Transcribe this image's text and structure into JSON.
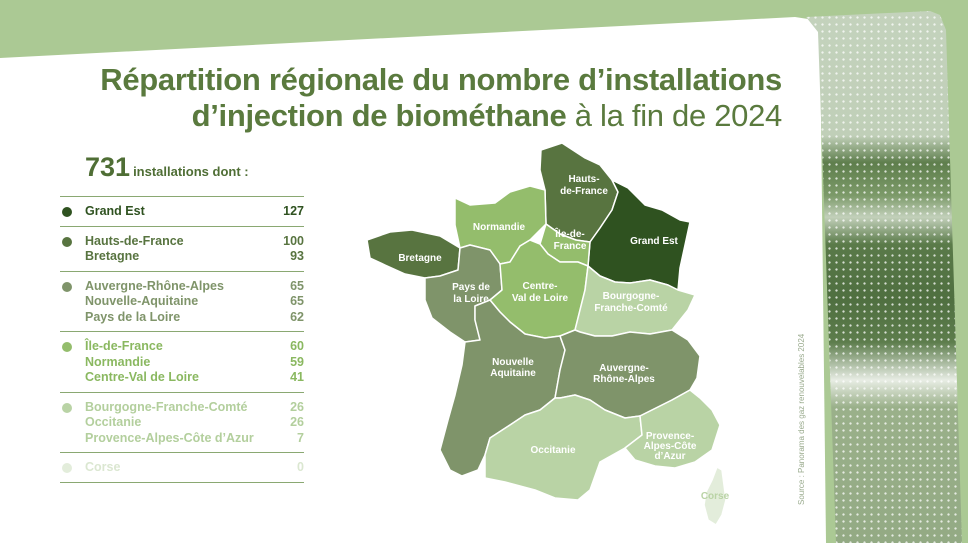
{
  "title": {
    "bold": "Répartition régionale du nombre d’installations",
    "bold2": "d’injection de biométhane",
    "light": " à la fin de 2024"
  },
  "total": {
    "value": "731",
    "label": "installations dont :"
  },
  "colors": {
    "tier1": "#2f5220",
    "tier2": "#587440",
    "tier3": "#7f946a",
    "tier4": "#94bd6c",
    "tier5": "#b9d3a5",
    "tier6": "#e3eddb",
    "text_dark": "#4f6e35",
    "background": "#abc994"
  },
  "legend": {
    "groups": [
      {
        "color": "#2f5220",
        "text_color": "#2f5220",
        "rows": [
          {
            "region": "Grand Est",
            "value": "127"
          }
        ]
      },
      {
        "color": "#587440",
        "text_color": "#587440",
        "rows": [
          {
            "region": "Hauts-de-France",
            "value": "100"
          },
          {
            "region": "Bretagne",
            "value": "93"
          }
        ]
      },
      {
        "color": "#7f946a",
        "text_color": "#7f946a",
        "rows": [
          {
            "region": "Auvergne-Rhône-Alpes",
            "value": "65"
          },
          {
            "region": "Nouvelle-Aquitaine",
            "value": "65"
          },
          {
            "region": "Pays de la Loire",
            "value": "62"
          }
        ]
      },
      {
        "color": "#94bd6c",
        "text_color": "#8ab860",
        "rows": [
          {
            "region": "Île-de-France",
            "value": "60"
          },
          {
            "region": "Normandie",
            "value": "59"
          },
          {
            "region": "Centre-Val de Loire",
            "value": "41"
          }
        ]
      },
      {
        "color": "#b9d3a5",
        "text_color": "#b3cf9d",
        "rows": [
          {
            "region": "Bourgogne-Franche-Comté",
            "value": "26"
          },
          {
            "region": "Occitanie",
            "value": "26"
          },
          {
            "region": "Provence-Alpes-Côte d’Azur",
            "value": "7"
          }
        ]
      },
      {
        "color": "#e3eddb",
        "text_color": "#dbe7d1",
        "rows": [
          {
            "region": "Corse",
            "value": "0"
          }
        ]
      }
    ]
  },
  "map_labels": {
    "hauts_de_france": [
      "Hauts-",
      "de-France"
    ],
    "normandie": [
      "Normandie"
    ],
    "ile_de_france": [
      "Île-de-",
      "France"
    ],
    "grand_est": [
      "Grand Est"
    ],
    "bretagne": [
      "Bretagne"
    ],
    "pays_de_la_loire": [
      "Pays de",
      "la Loire"
    ],
    "centre_val_de_loire": [
      "Centre-",
      "Val de Loire"
    ],
    "bourgogne_franche_comte": [
      "Bourgogne-",
      "Franche-Comté"
    ],
    "nouvelle_aquitaine": [
      "Nouvelle",
      "Aquitaine"
    ],
    "auvergne_rhone_alpes": [
      "Auvergne-",
      "Rhône-Alpes"
    ],
    "occitanie": [
      "Occitanie"
    ],
    "paca": [
      "Provence-",
      "Alpes-Côte",
      "d’Azur"
    ],
    "corse": [
      "Corse"
    ]
  },
  "source": "Source : Panorama des gaz renouvelables 2024",
  "chart_data": {
    "type": "map",
    "title": "Répartition régionale du nombre d’installations d’injection de biométhane à la fin de 2024",
    "total": 731,
    "categories": [
      "Grand Est",
      "Hauts-de-France",
      "Bretagne",
      "Auvergne-Rhône-Alpes",
      "Nouvelle-Aquitaine",
      "Pays de la Loire",
      "Île-de-France",
      "Normandie",
      "Centre-Val de Loire",
      "Bourgogne-Franche-Comté",
      "Occitanie",
      "Provence-Alpes-Côte d’Azur",
      "Corse"
    ],
    "values": [
      127,
      100,
      93,
      65,
      65,
      62,
      60,
      59,
      41,
      26,
      26,
      7,
      0
    ],
    "legend_tiers": [
      {
        "color": "#2f5220",
        "regions": [
          "Grand Est"
        ]
      },
      {
        "color": "#587440",
        "regions": [
          "Hauts-de-France",
          "Bretagne"
        ]
      },
      {
        "color": "#7f946a",
        "regions": [
          "Auvergne-Rhône-Alpes",
          "Nouvelle-Aquitaine",
          "Pays de la Loire"
        ]
      },
      {
        "color": "#94bd6c",
        "regions": [
          "Île-de-France",
          "Normandie",
          "Centre-Val de Loire"
        ]
      },
      {
        "color": "#b9d3a5",
        "regions": [
          "Bourgogne-Franche-Comté",
          "Occitanie",
          "Provence-Alpes-Côte d’Azur"
        ]
      },
      {
        "color": "#e3eddb",
        "regions": [
          "Corse"
        ]
      }
    ],
    "source": "Panorama des gaz renouvelables 2024"
  }
}
